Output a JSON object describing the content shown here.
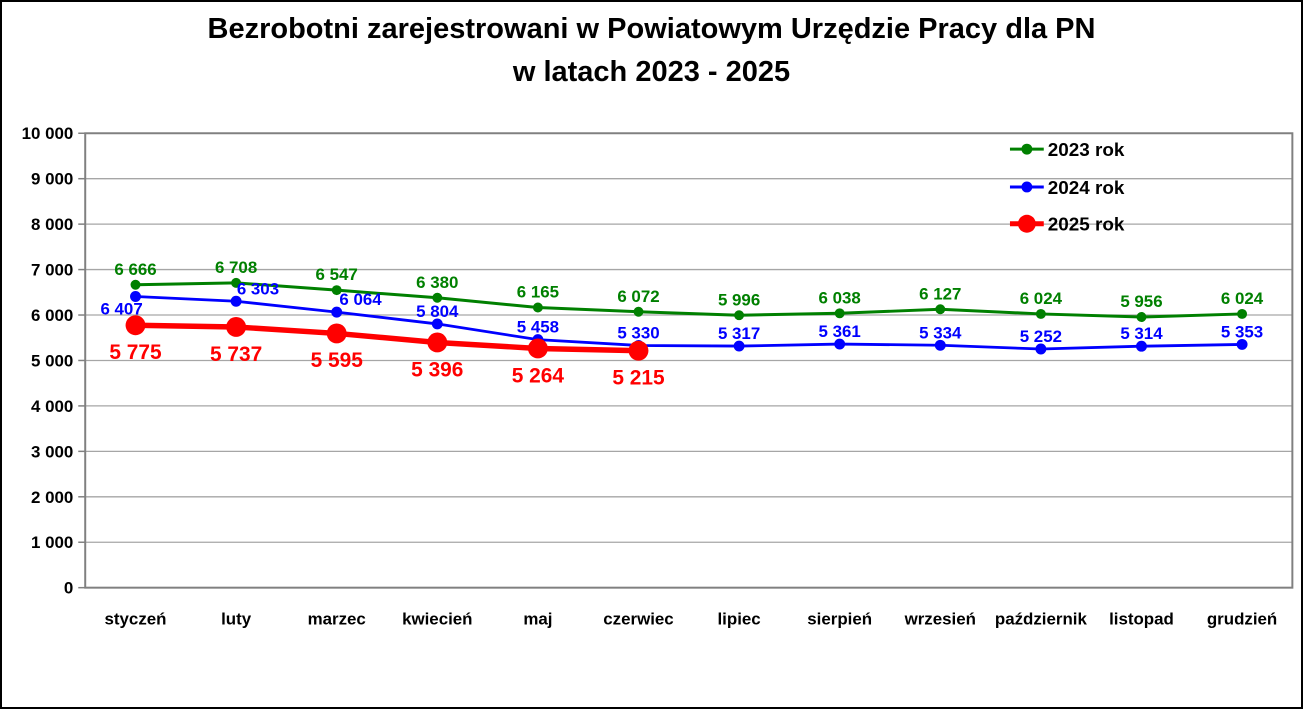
{
  "title": {
    "line1": "Bezrobotni zarejestrowani w Powiatowym Urzędzie Pracy dla PN",
    "line2": "w latach 2023 - 2025"
  },
  "chart_data": {
    "type": "line",
    "title": "Bezrobotni zarejestrowani w Powiatowym Urzędzie Pracy dla PN w latach 2023 - 2025",
    "categories": [
      "styczeń",
      "luty",
      "marzec",
      "kwiecień",
      "maj",
      "czerwiec",
      "lipiec",
      "sierpień",
      "wrzesień",
      "październik",
      "listopad",
      "grudzień"
    ],
    "series": [
      {
        "name": "2023 rok",
        "color": "#008000",
        "values": [
          6666,
          6708,
          6547,
          6380,
          6165,
          6072,
          5996,
          6038,
          6127,
          6024,
          5956,
          6024
        ],
        "labels": [
          "6 666",
          "6 708",
          "6 547",
          "6 380",
          "6 165",
          "6 072",
          "5 996",
          "6 038",
          "6 127",
          "6 024",
          "5 956",
          "6 024"
        ],
        "label_position": "above"
      },
      {
        "name": "2024 rok",
        "color": "#0000FF",
        "values": [
          6407,
          6303,
          6064,
          5804,
          5458,
          5330,
          5317,
          5361,
          5334,
          5252,
          5314,
          5353
        ],
        "labels": [
          "6 407",
          "6 303",
          "6 064",
          "5 804",
          "5 458",
          "5 330",
          "5 317",
          "5 361",
          "5 334",
          "5 252",
          "5 314",
          "5 353"
        ],
        "label_position": "above"
      },
      {
        "name": "2025 rok",
        "color": "#FF0000",
        "values": [
          5775,
          5737,
          5595,
          5396,
          5264,
          5215
        ],
        "labels": [
          "5 775",
          "5 737",
          "5 595",
          "5 396",
          "5 264",
          "5 215"
        ],
        "label_position": "below"
      }
    ],
    "xlabel": "",
    "ylabel": "",
    "ylim": [
      0,
      10000
    ],
    "ytick_step": 1000,
    "ytick_labels": [
      "0",
      "1 000",
      "2 000",
      "3 000",
      "4 000",
      "5 000",
      "6 000",
      "7 000",
      "8 000",
      "9 000",
      "10 000"
    ],
    "grid": true,
    "legend": {
      "position": "top-right",
      "entries": [
        "2023 rok",
        "2024 rok",
        "2025 rok"
      ]
    }
  }
}
